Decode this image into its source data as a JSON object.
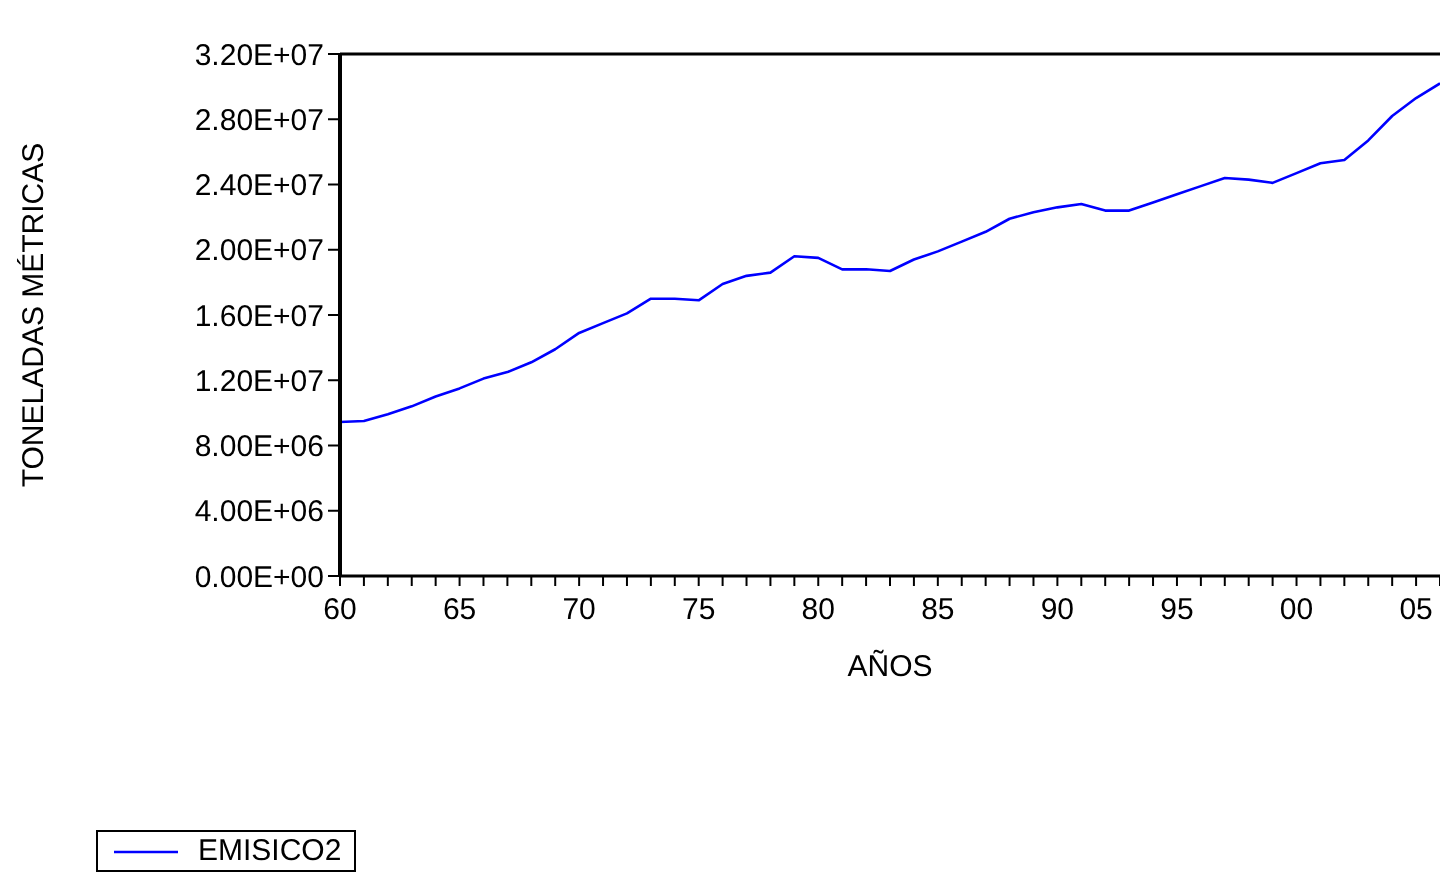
{
  "chart_data": {
    "type": "line",
    "xlabel": "AÑOS",
    "ylabel": "TONELADAS MÉTRICAS",
    "x": [
      1960,
      1961,
      1962,
      1963,
      1964,
      1965,
      1966,
      1967,
      1968,
      1969,
      1970,
      1971,
      1972,
      1973,
      1974,
      1975,
      1976,
      1977,
      1978,
      1979,
      1980,
      1981,
      1982,
      1983,
      1984,
      1985,
      1986,
      1987,
      1988,
      1989,
      1990,
      1991,
      1992,
      1993,
      1994,
      1995,
      1996,
      1997,
      1998,
      1999,
      2000,
      2001,
      2002,
      2003,
      2004,
      2005,
      2006
    ],
    "series": [
      {
        "name": "EMISICO2",
        "color": "#0000ff",
        "values": [
          9440000,
          9500000,
          9920000,
          10400000,
          11000000,
          11500000,
          12100000,
          12500000,
          13100000,
          13900000,
          14900000,
          15500000,
          16100000,
          17000000,
          17000000,
          16900000,
          17900000,
          18400000,
          18600000,
          19600000,
          19500000,
          18800000,
          18800000,
          18700000,
          19400000,
          19900000,
          20500000,
          21100000,
          21900000,
          22300000,
          22600000,
          22800000,
          22400000,
          22400000,
          22900000,
          23400000,
          23900000,
          24400000,
          24300000,
          24100000,
          24700000,
          25300000,
          25500000,
          26700000,
          28200000,
          29300000,
          30200000
        ]
      }
    ],
    "xlim": [
      1960,
      2006
    ],
    "xticks": [
      {
        "value": 1960,
        "label": "60"
      },
      {
        "value": 1961,
        "label": null
      },
      {
        "value": 1962,
        "label": null
      },
      {
        "value": 1963,
        "label": null
      },
      {
        "value": 1964,
        "label": null
      },
      {
        "value": 1965,
        "label": "65"
      },
      {
        "value": 1966,
        "label": null
      },
      {
        "value": 1967,
        "label": null
      },
      {
        "value": 1968,
        "label": null
      },
      {
        "value": 1969,
        "label": null
      },
      {
        "value": 1970,
        "label": "70"
      },
      {
        "value": 1971,
        "label": null
      },
      {
        "value": 1972,
        "label": null
      },
      {
        "value": 1973,
        "label": null
      },
      {
        "value": 1974,
        "label": null
      },
      {
        "value": 1975,
        "label": "75"
      },
      {
        "value": 1976,
        "label": null
      },
      {
        "value": 1977,
        "label": null
      },
      {
        "value": 1978,
        "label": null
      },
      {
        "value": 1979,
        "label": null
      },
      {
        "value": 1980,
        "label": "80"
      },
      {
        "value": 1981,
        "label": null
      },
      {
        "value": 1982,
        "label": null
      },
      {
        "value": 1983,
        "label": null
      },
      {
        "value": 1984,
        "label": null
      },
      {
        "value": 1985,
        "label": "85"
      },
      {
        "value": 1986,
        "label": null
      },
      {
        "value": 1987,
        "label": null
      },
      {
        "value": 1988,
        "label": null
      },
      {
        "value": 1989,
        "label": null
      },
      {
        "value": 1990,
        "label": "90"
      },
      {
        "value": 1991,
        "label": null
      },
      {
        "value": 1992,
        "label": null
      },
      {
        "value": 1993,
        "label": null
      },
      {
        "value": 1994,
        "label": null
      },
      {
        "value": 1995,
        "label": "95"
      },
      {
        "value": 1996,
        "label": null
      },
      {
        "value": 1997,
        "label": null
      },
      {
        "value": 1998,
        "label": null
      },
      {
        "value": 1999,
        "label": null
      },
      {
        "value": 2000,
        "label": "00"
      },
      {
        "value": 2001,
        "label": null
      },
      {
        "value": 2002,
        "label": null
      },
      {
        "value": 2003,
        "label": null
      },
      {
        "value": 2004,
        "label": null
      },
      {
        "value": 2005,
        "label": "05"
      },
      {
        "value": 2006,
        "label": null
      }
    ],
    "ylim": [
      0,
      32000000
    ],
    "yticks": [
      {
        "value": 0,
        "label": "0.00E+00"
      },
      {
        "value": 4000000,
        "label": "4.00E+06"
      },
      {
        "value": 8000000,
        "label": "8.00E+06"
      },
      {
        "value": 12000000,
        "label": "1.20E+07"
      },
      {
        "value": 16000000,
        "label": "1.60E+07"
      },
      {
        "value": 20000000,
        "label": "2.00E+07"
      },
      {
        "value": 24000000,
        "label": "2.40E+07"
      },
      {
        "value": 28000000,
        "label": "2.80E+07"
      },
      {
        "value": 32000000,
        "label": "3.20E+07"
      }
    ],
    "grid": false,
    "legend": "bottom left",
    "marker": "none",
    "line_style": "solid"
  }
}
